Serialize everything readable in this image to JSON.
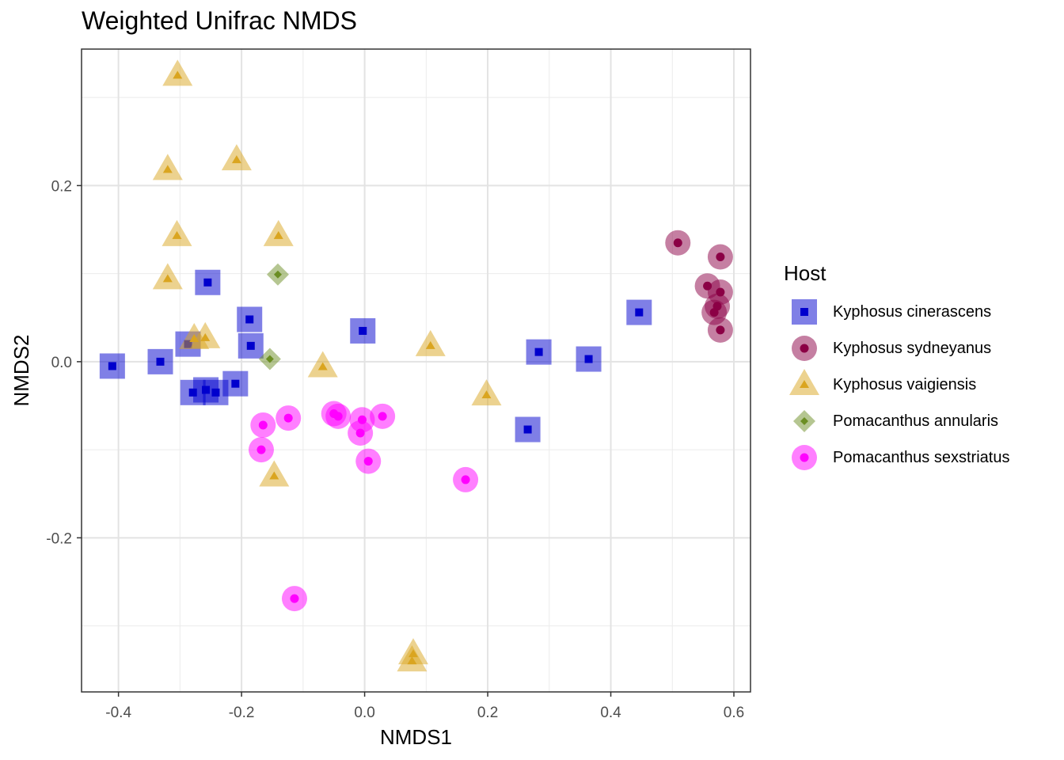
{
  "chart_data": {
    "type": "scatter",
    "title": "Weighted Unifrac NMDS",
    "xlabel": "NMDS1",
    "ylabel": "NMDS2",
    "xlim": [
      -0.46,
      0.627
    ],
    "ylim": [
      -0.375,
      0.355
    ],
    "xticks": [
      -0.4,
      -0.2,
      0.0,
      0.2,
      0.4,
      0.6
    ],
    "xtick_labels": [
      "-0.4",
      "-0.2",
      "0.0",
      "0.2",
      "0.4",
      "0.6"
    ],
    "yticks": [
      -0.2,
      0.0,
      0.2
    ],
    "ytick_labels": [
      "-0.2",
      "0.0",
      "0.2"
    ],
    "grid": true,
    "legend_title": "Host",
    "legend_position": "right",
    "series": [
      {
        "name": "Kyphosus cinerascens",
        "marker": "square",
        "color": "#0000CD",
        "x": [
          -0.41,
          -0.332,
          -0.279,
          -0.287,
          -0.258,
          -0.255,
          -0.242,
          -0.21,
          -0.187,
          -0.185,
          -0.003,
          0.265,
          0.283,
          0.364,
          0.446
        ],
        "y": [
          -0.005,
          0.0,
          -0.035,
          0.02,
          -0.032,
          0.09,
          -0.035,
          -0.025,
          0.048,
          0.018,
          0.035,
          -0.077,
          0.011,
          0.003,
          0.056
        ]
      },
      {
        "name": "Kyphosus sydneyanus",
        "marker": "circle",
        "color": "#8B0045",
        "x": [
          0.509,
          0.578,
          0.557,
          0.578,
          0.573,
          0.568,
          0.578
        ],
        "y": [
          0.135,
          0.119,
          0.086,
          0.079,
          0.063,
          0.056,
          0.036
        ]
      },
      {
        "name": "Kyphosus vaigiensis",
        "marker": "triangle",
        "color": "#DAA520",
        "x": [
          -0.304,
          -0.32,
          -0.208,
          -0.305,
          -0.14,
          -0.32,
          -0.277,
          -0.259,
          -0.068,
          0.107,
          0.198,
          -0.147,
          0.079,
          0.077
        ],
        "y": [
          0.325,
          0.218,
          0.229,
          0.143,
          0.143,
          0.094,
          0.026,
          0.027,
          -0.006,
          0.018,
          -0.038,
          -0.13,
          -0.332,
          -0.34
        ]
      },
      {
        "name": "Pomacanthus annularis",
        "marker": "diamond",
        "color": "#6B8E23",
        "x": [
          -0.141,
          -0.154
        ],
        "y": [
          0.099,
          0.003
        ]
      },
      {
        "name": "Pomacanthus sexstriatus",
        "marker": "circle",
        "color": "#FF00FF",
        "x": [
          -0.165,
          -0.124,
          -0.168,
          -0.05,
          -0.043,
          -0.004,
          -0.007,
          0.029,
          0.006,
          0.164,
          -0.114
        ],
        "y": [
          -0.072,
          -0.064,
          -0.1,
          -0.059,
          -0.062,
          -0.066,
          -0.081,
          -0.062,
          -0.113,
          -0.134,
          -0.269
        ]
      }
    ]
  }
}
